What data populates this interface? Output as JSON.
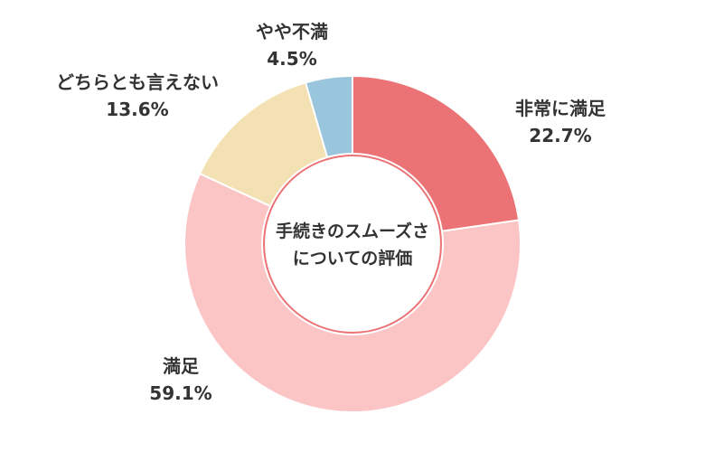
{
  "chart_data": {
    "type": "pie",
    "title_lines": [
      "手続きのスムーズさ",
      "についての評価"
    ],
    "slices": [
      {
        "name": "非常に満足",
        "value": 22.7,
        "value_label": "22.7%",
        "color": "#eb7275"
      },
      {
        "name": "満足",
        "value": 59.1,
        "value_label": "59.1%",
        "color": "#fbc5c6"
      },
      {
        "name": "どちらとも言えない",
        "value": 13.6,
        "value_label": "13.6%",
        "color": "#f4e1b3"
      },
      {
        "name": "やや不満",
        "value": 4.5,
        "value_label": "4.5%",
        "color": "#99c6dc"
      }
    ]
  }
}
